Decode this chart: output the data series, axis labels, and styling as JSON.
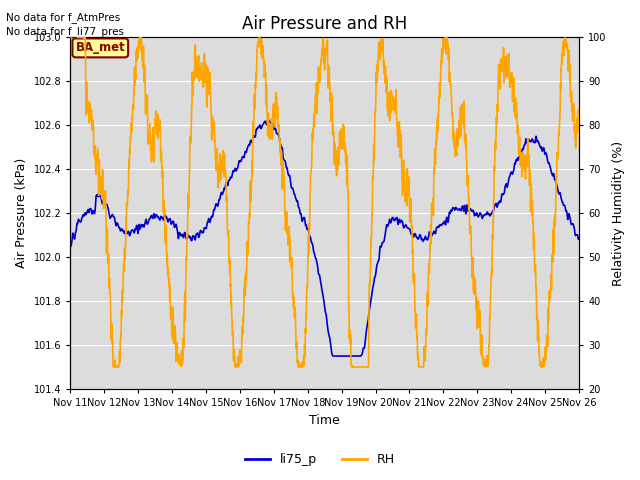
{
  "title": "Air Pressure and RH",
  "xlabel": "Time",
  "ylabel_left": "Air Pressure (kPa)",
  "ylabel_right": "Relativity Humidity (%)",
  "ylim_left": [
    101.4,
    103.0
  ],
  "ylim_right": [
    20,
    100
  ],
  "yticks_left": [
    101.4,
    101.6,
    101.8,
    102.0,
    102.2,
    102.4,
    102.6,
    102.8,
    103.0
  ],
  "yticks_right": [
    20,
    30,
    40,
    50,
    60,
    70,
    80,
    90,
    100
  ],
  "xtick_labels": [
    "Nov 11",
    "Nov 12",
    "Nov 13",
    "Nov 14",
    "Nov 15",
    "Nov 16",
    "Nov 17",
    "Nov 18",
    "Nov 19",
    "Nov 20",
    "Nov 21",
    "Nov 22",
    "Nov 23",
    "Nov 24",
    "Nov 25",
    "Nov 26"
  ],
  "line_blue_color": "#0000CC",
  "line_orange_color": "#FFA500",
  "line_width": 1.2,
  "legend_labels": [
    "li75_p",
    "RH"
  ],
  "legend_line_colors": [
    "#0000CC",
    "#FFA500"
  ],
  "no_data_text1": "No data for f_AtmPres",
  "no_data_text2": "No data for f_li77_pres",
  "ba_met_label": "BA_met",
  "ba_met_bg": "#FFFF99",
  "ba_met_text_color": "#8B0000",
  "plot_bg_color": "#DCDCDC",
  "fig_bg_color": "#FFFFFF",
  "grid_color": "#FFFFFF",
  "title_fontsize": 12,
  "axis_label_fontsize": 9,
  "tick_fontsize": 7,
  "n_points": 3600
}
